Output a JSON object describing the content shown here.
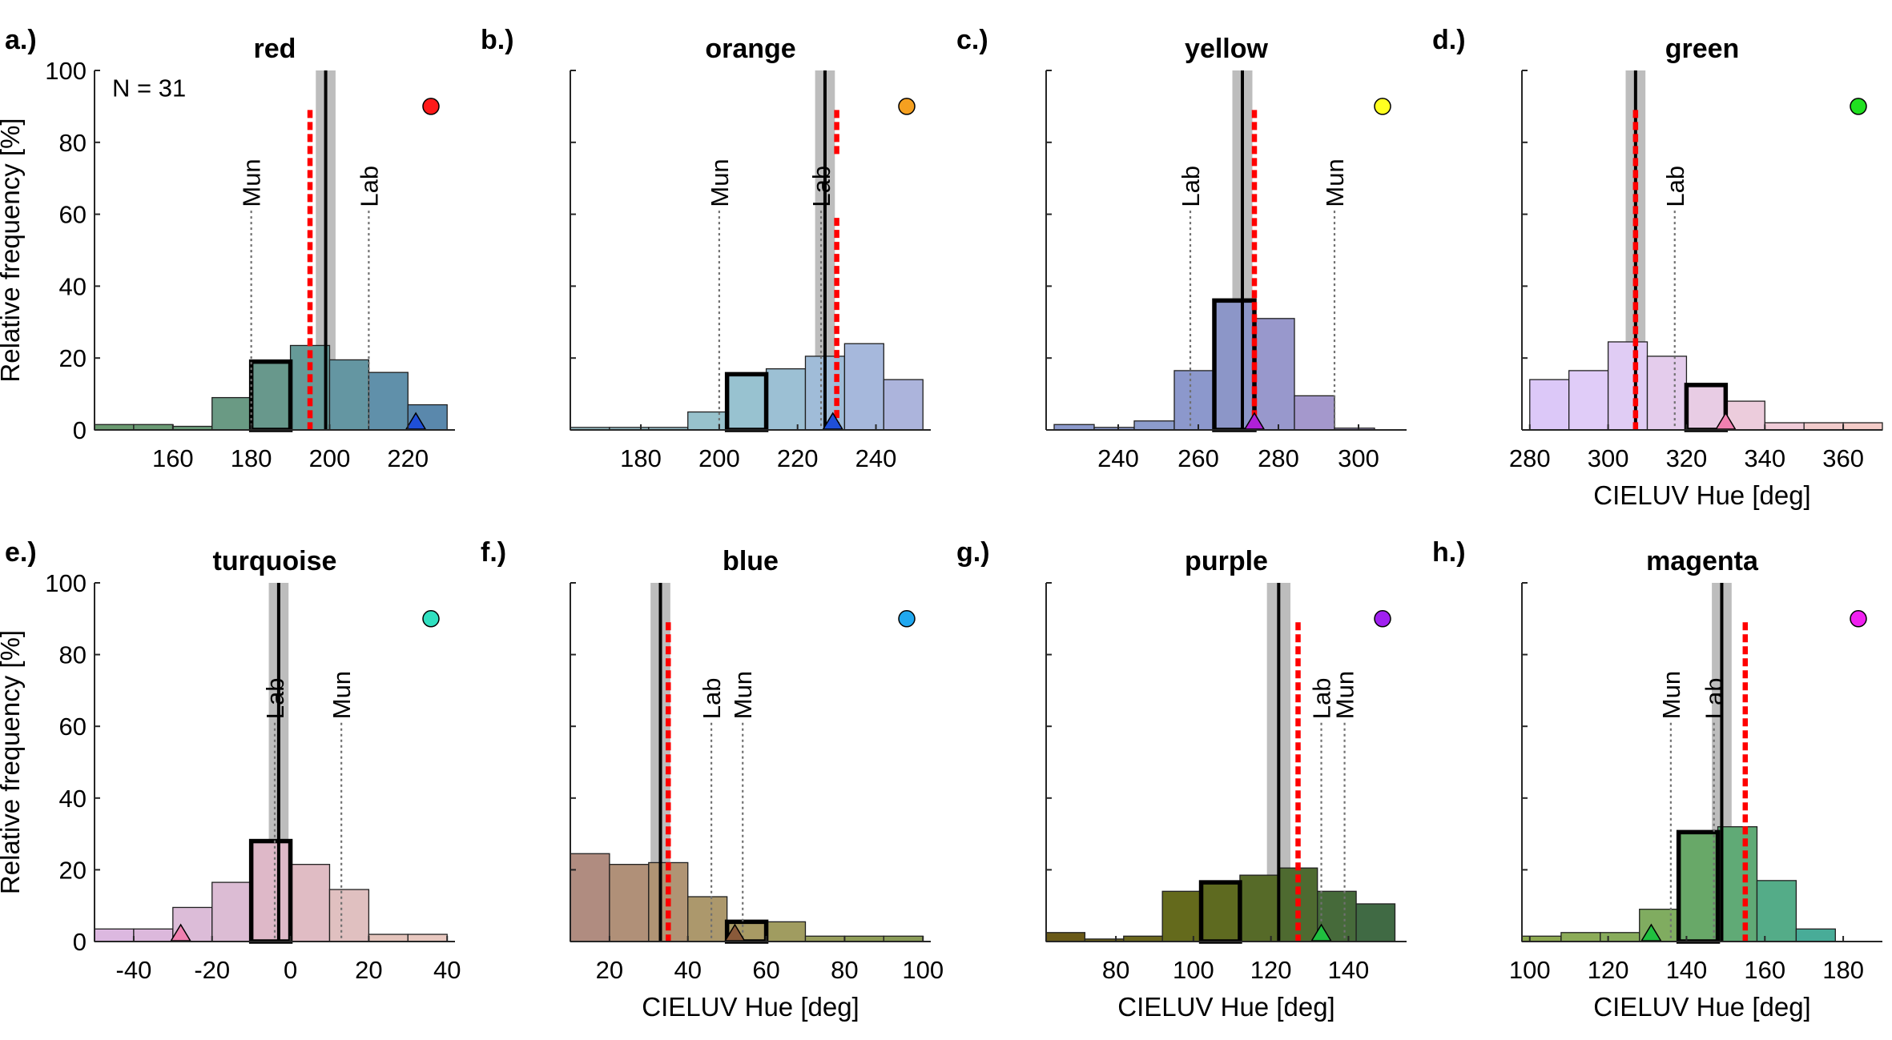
{
  "figure": {
    "ylabel": "Relative frequency [%]",
    "xlabel": "CIELUV Hue [deg]",
    "n_label": "N = 31"
  },
  "chart_data": [
    {
      "type": "bar",
      "letter": "a.)",
      "title": "red",
      "xlim": [
        140,
        232
      ],
      "ylim": [
        0,
        100
      ],
      "xticks": [
        160,
        180,
        200,
        220
      ],
      "yticks": [
        0,
        20,
        40,
        60,
        80,
        100
      ],
      "show_ylabel": true,
      "show_xlabel": false,
      "show_n": true,
      "bin_edges": [
        140,
        150,
        160,
        170,
        180,
        190,
        200,
        210,
        220,
        230
      ],
      "bin_values": [
        1.5,
        1.5,
        1,
        9,
        19,
        23.5,
        19.5,
        16,
        7
      ],
      "bin_colors": [
        "#6a9a70",
        "#6a9a74",
        "#6a9a78",
        "#6a9a84",
        "#68988c",
        "#669a98",
        "#6496a2",
        "#6090aa",
        "#5a88ac"
      ],
      "highlight_bin": 4,
      "mean": 199,
      "mean_band": [
        197.5,
        200.5
      ],
      "red_line": 195,
      "red_gap": null,
      "refs": [
        {
          "label": "Mun",
          "x": 180
        },
        {
          "label": "Lab",
          "x": 210
        }
      ],
      "triangle": {
        "x": 222,
        "color": "#1f4fd8"
      },
      "dot_color": "#ff1a1a"
    },
    {
      "type": "bar",
      "letter": "b.)",
      "title": "orange",
      "xlim": [
        162,
        254
      ],
      "ylim": [
        0,
        100
      ],
      "xticks": [
        180,
        200,
        220,
        240
      ],
      "yticks": [
        0,
        20,
        40,
        60,
        80,
        100
      ],
      "show_ylabel": false,
      "show_xlabel": false,
      "show_n": false,
      "bin_edges": [
        162,
        172,
        182,
        192,
        202,
        212,
        222,
        232,
        242,
        252
      ],
      "bin_values": [
        0.7,
        0.7,
        0.7,
        5,
        15.5,
        17,
        20.5,
        24,
        14
      ],
      "bin_colors": [
        "#98c0c6",
        "#98c0c8",
        "#98c0ca",
        "#98c2cc",
        "#98c2d0",
        "#9cc0d4",
        "#a0bcd8",
        "#a6b8dc",
        "#acb4dc"
      ],
      "highlight_bin": 4,
      "mean": 227,
      "mean_band": [
        225.5,
        228.5
      ],
      "red_line": 230,
      "red_gap": [
        76,
        59
      ],
      "refs": [
        {
          "label": "Mun",
          "x": 200
        },
        {
          "label": "Lab",
          "x": 226
        }
      ],
      "triangle": {
        "x": 229,
        "color": "#1f4fd8"
      },
      "dot_color": "#f5a020"
    },
    {
      "type": "bar",
      "letter": "c.)",
      "title": "yellow",
      "xlim": [
        222,
        312
      ],
      "ylim": [
        0,
        100
      ],
      "xticks": [
        240,
        260,
        280,
        300
      ],
      "yticks": [
        0,
        20,
        40,
        60,
        80,
        100
      ],
      "show_ylabel": false,
      "show_xlabel": false,
      "show_n": false,
      "bin_edges": [
        224,
        234,
        244,
        254,
        264,
        274,
        284,
        294,
        304
      ],
      "bin_values": [
        1.5,
        0.7,
        2.5,
        16.5,
        36,
        31,
        9.5,
        0.5
      ],
      "bin_colors": [
        "#8c9acc",
        "#8c9acc",
        "#8c9ccc",
        "#8c98cc",
        "#8c96c8",
        "#9898cc",
        "#a498cc",
        "#aca0d0"
      ],
      "highlight_bin": 4,
      "mean": 271,
      "mean_band": [
        269.5,
        272.5
      ],
      "red_line": 274,
      "red_gap": null,
      "refs": [
        {
          "label": "Lab",
          "x": 258
        },
        {
          "label": "Mun",
          "x": 294
        }
      ],
      "triangle": {
        "x": 274,
        "color": "#b020d8"
      },
      "dot_color": "#ffff20"
    },
    {
      "type": "bar",
      "letter": "d.)",
      "title": "green",
      "xlim": [
        278,
        370
      ],
      "ylim": [
        0,
        100
      ],
      "xticks": [
        280,
        300,
        320,
        340,
        360
      ],
      "yticks": [
        0,
        20,
        40,
        60,
        80,
        100
      ],
      "show_ylabel": false,
      "show_xlabel": true,
      "show_n": false,
      "bin_edges": [
        280,
        290,
        300,
        310,
        320,
        330,
        340,
        350,
        360,
        370
      ],
      "bin_values": [
        14,
        16.5,
        24.5,
        20.5,
        12.5,
        8,
        2,
        2,
        2
      ],
      "bin_colors": [
        "#dcc8f8",
        "#e0ccf8",
        "#e0ccf4",
        "#e4ccec",
        "#e8cce4",
        "#ecccdc",
        "#f0ccd8",
        "#f2cccc",
        "#f4ccc8"
      ],
      "highlight_bin": 4,
      "mean": 307,
      "mean_band": [
        305.5,
        308.5
      ],
      "red_line": 307,
      "red_gap": null,
      "refs": [
        {
          "label": "Lab",
          "x": 317
        }
      ],
      "triangle": {
        "x": 330,
        "color": "#f080b0"
      },
      "dot_color": "#20e020"
    },
    {
      "type": "bar",
      "letter": "e.)",
      "title": "turquoise",
      "xlim": [
        -50,
        42
      ],
      "ylim": [
        0,
        100
      ],
      "xticks": [
        -40,
        -20,
        0,
        20,
        40
      ],
      "yticks": [
        0,
        20,
        40,
        60,
        80,
        100
      ],
      "show_ylabel": true,
      "show_xlabel": false,
      "show_n": false,
      "bin_edges": [
        -50,
        -40,
        -30,
        -20,
        -10,
        0,
        10,
        20,
        30,
        40
      ],
      "bin_values": [
        3.5,
        3.5,
        9.5,
        16.5,
        28,
        21.5,
        14.5,
        2,
        2
      ],
      "bin_colors": [
        "#dcb8e0",
        "#dcb8dc",
        "#dcbcd8",
        "#dcbcd4",
        "#deb8c8",
        "#e0bcc4",
        "#e0c0c0",
        "#e4c4bc",
        "#e8c8c0"
      ],
      "highlight_bin": 4,
      "mean": -3,
      "mean_band": [
        -4.5,
        -1.5
      ],
      "red_line": null,
      "red_gap": null,
      "refs": [
        {
          "label": "Lab",
          "x": -4
        },
        {
          "label": "Mun",
          "x": 13
        }
      ],
      "triangle": {
        "x": -28,
        "color": "#f080b0"
      },
      "dot_color": "#30e0c0"
    },
    {
      "type": "bar",
      "letter": "f.)",
      "title": "blue",
      "xlim": [
        10,
        102
      ],
      "ylim": [
        0,
        100
      ],
      "xticks": [
        20,
        40,
        60,
        80,
        100
      ],
      "yticks": [
        0,
        20,
        40,
        60,
        80,
        100
      ],
      "show_ylabel": false,
      "show_xlabel": true,
      "show_n": false,
      "bin_edges": [
        10,
        20,
        30,
        40,
        50,
        60,
        70,
        80,
        90,
        100
      ],
      "bin_values": [
        24.5,
        21.5,
        22,
        12.5,
        5.5,
        5.5,
        1.5,
        1.5,
        1.5
      ],
      "bin_colors": [
        "#b08c80",
        "#b09078",
        "#b09474",
        "#ac986c",
        "#a89a64",
        "#a09c60",
        "#989e5c",
        "#909e58",
        "#8a9c58"
      ],
      "highlight_bin": 4,
      "mean": 33,
      "mean_band": [
        31.5,
        34.5
      ],
      "red_line": 35,
      "red_gap": null,
      "refs": [
        {
          "label": "Lab",
          "x": 46
        },
        {
          "label": "Mun",
          "x": 54
        }
      ],
      "triangle": {
        "x": 52,
        "color": "#8a5a3a"
      },
      "dot_color": "#20a8f0"
    },
    {
      "type": "bar",
      "letter": "g.)",
      "title": "purple",
      "xlim": [
        62,
        155
      ],
      "ylim": [
        0,
        100
      ],
      "xticks": [
        80,
        100,
        120,
        140
      ],
      "yticks": [
        0,
        20,
        40,
        60,
        80,
        100
      ],
      "show_ylabel": false,
      "show_xlabel": true,
      "show_n": false,
      "bin_edges": [
        62,
        72,
        82,
        92,
        102,
        112,
        122,
        132,
        142,
        152
      ],
      "bin_values": [
        2.5,
        0.7,
        1.5,
        14,
        16.5,
        18.5,
        20.5,
        14,
        10.5
      ],
      "bin_colors": [
        "#6a5a18",
        "#6a6018",
        "#6a661c",
        "#646a1c",
        "#5e6a20",
        "#566a28",
        "#4e6a30",
        "#466a3a",
        "#406a44"
      ],
      "highlight_bin": 4,
      "mean": 122,
      "mean_band": [
        120,
        124
      ],
      "red_line": 127,
      "red_gap": null,
      "refs": [
        {
          "label": "Lab",
          "x": 133
        },
        {
          "label": "Mun",
          "x": 139
        }
      ],
      "triangle": {
        "x": 133,
        "color": "#20c040"
      },
      "dot_color": "#a020f0"
    },
    {
      "type": "bar",
      "letter": "h.)",
      "title": "magenta",
      "xlim": [
        98,
        190
      ],
      "ylim": [
        0,
        100
      ],
      "xticks": [
        100,
        120,
        140,
        160,
        180
      ],
      "yticks": [
        0,
        20,
        40,
        60,
        80,
        100
      ],
      "show_ylabel": false,
      "show_xlabel": true,
      "show_n": false,
      "bin_edges": [
        98,
        108,
        118,
        128,
        138,
        148,
        158,
        168,
        178
      ],
      "bin_values": [
        1.5,
        2.5,
        2.5,
        9,
        30.5,
        32,
        17,
        3.5
      ],
      "bin_colors": [
        "#8ca850",
        "#8cac58",
        "#88ac5c",
        "#80ac60",
        "#68a868",
        "#60aa76",
        "#54ac88",
        "#48ac98"
      ],
      "highlight_bin": 4,
      "mean": 149,
      "mean_band": [
        147.5,
        150.5
      ],
      "red_line": 155,
      "red_gap": null,
      "refs": [
        {
          "label": "Mun",
          "x": 136
        },
        {
          "label": "Lab",
          "x": 147
        }
      ],
      "triangle": {
        "x": 131,
        "color": "#20c040"
      },
      "dot_color": "#f020f0"
    }
  ]
}
